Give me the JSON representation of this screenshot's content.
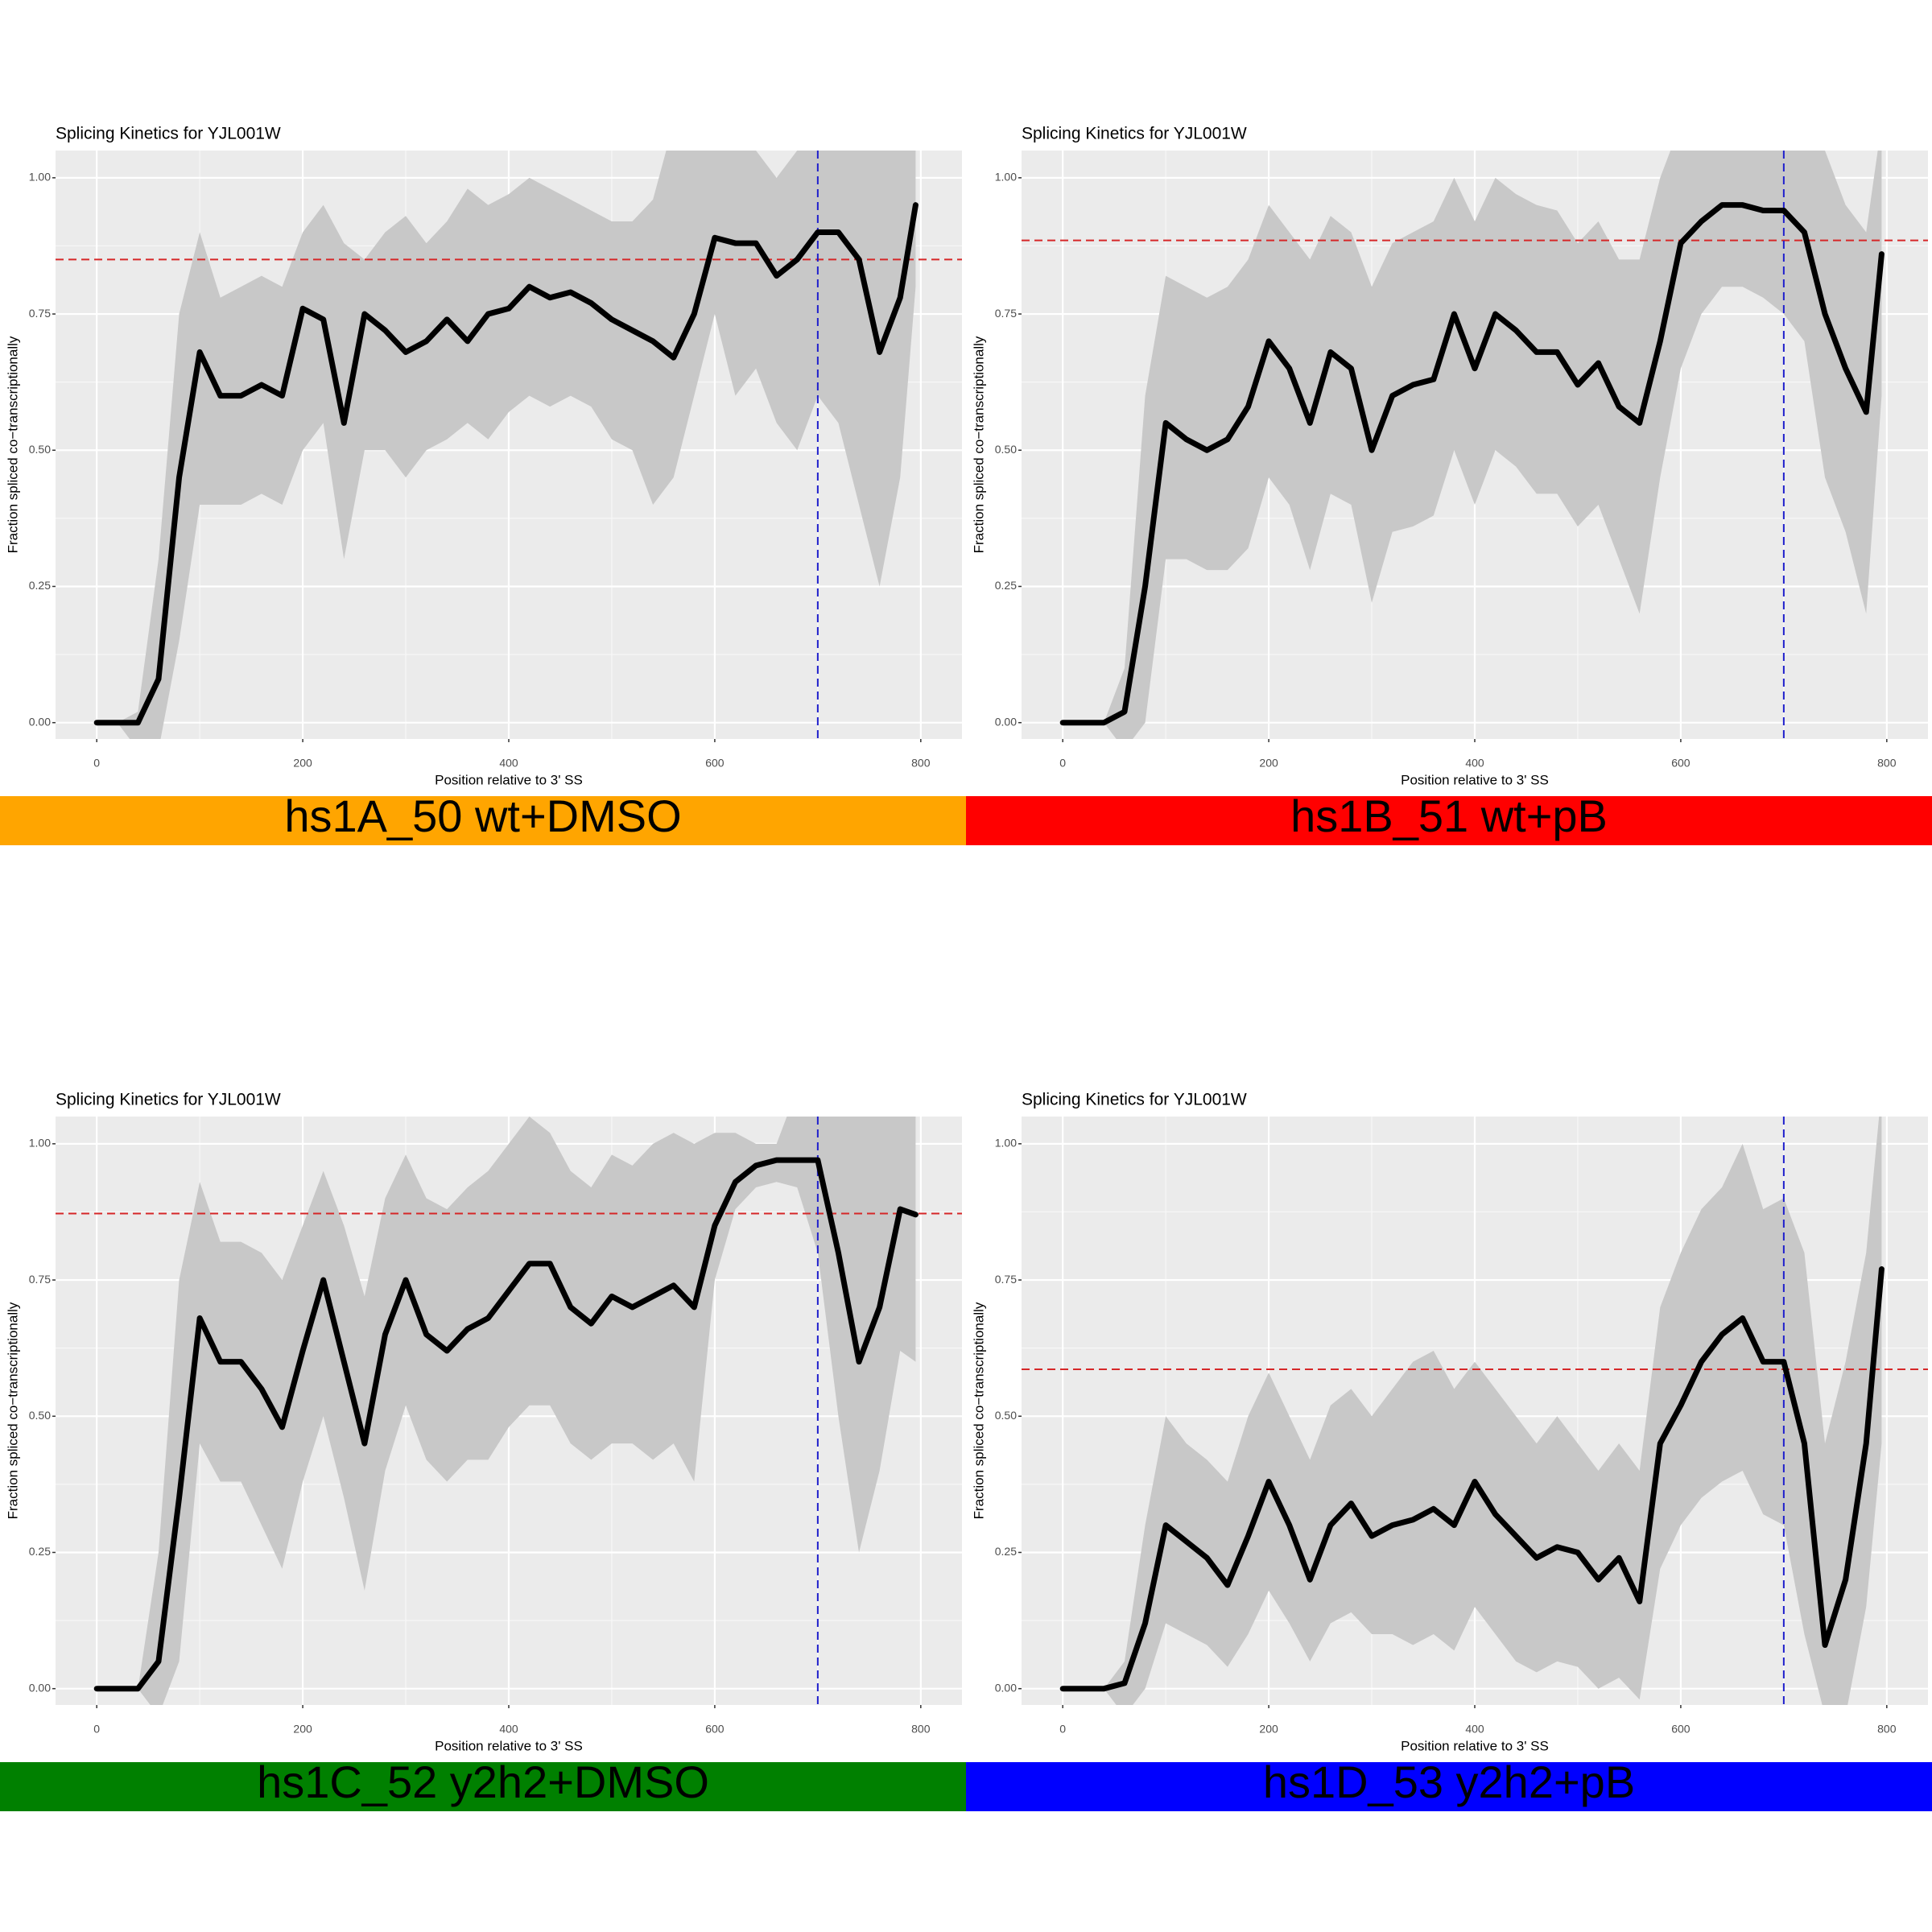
{
  "chart_data": [
    {
      "type": "line",
      "title": "Splicing Kinetics for YJL001W",
      "x_label": "Position relative to 3' SS",
      "y_label": "Fraction spliced co−transcriptionally",
      "panel_label": "hs1A_50 wt+DMSO",
      "panel_color": "#ffa500",
      "xlim": [
        -40,
        840
      ],
      "xticks": [
        0,
        200,
        400,
        600,
        800
      ],
      "ylim": [
        -0.03,
        1.05
      ],
      "yticks": [
        {
          "value": 0,
          "label": "0.00"
        },
        {
          "value": 0.25,
          "label": "0.25"
        },
        {
          "value": 0.5,
          "label": "0.50"
        },
        {
          "value": 0.75,
          "label": "0.75"
        },
        {
          "value": 1,
          "label": "1.00"
        }
      ],
      "grid": true,
      "hline": 0.85,
      "hline_color": "#d62728",
      "vline": 700,
      "vline_color": "#1f1fcc",
      "band_color": "#c8c8c8",
      "x": [
        0,
        20,
        40,
        60,
        80,
        100,
        120,
        140,
        160,
        180,
        200,
        220,
        240,
        260,
        280,
        300,
        320,
        340,
        360,
        380,
        400,
        420,
        440,
        460,
        480,
        500,
        520,
        540,
        560,
        580,
        600,
        620,
        640,
        660,
        680,
        700,
        720,
        740,
        760,
        780,
        795
      ],
      "series": [
        {
          "color": "#000000",
          "values": [
            0,
            0,
            0,
            0.08,
            0.45,
            0.68,
            0.6,
            0.6,
            0.62,
            0.6,
            0.76,
            0.74,
            0.55,
            0.75,
            0.72,
            0.68,
            0.7,
            0.74,
            0.7,
            0.75,
            0.76,
            0.8,
            0.78,
            0.79,
            0.77,
            0.74,
            0.72,
            0.7,
            0.67,
            0.75,
            0.89,
            0.88,
            0.88,
            0.82,
            0.85,
            0.9,
            0.9,
            0.85,
            0.68,
            0.78,
            0.95
          ],
          "upper": [
            0,
            0,
            0.02,
            0.3,
            0.75,
            0.9,
            0.78,
            0.8,
            0.82,
            0.8,
            0.9,
            0.95,
            0.88,
            0.85,
            0.9,
            0.93,
            0.88,
            0.92,
            0.98,
            0.95,
            0.97,
            1.0,
            0.98,
            0.96,
            0.94,
            0.92,
            0.92,
            0.96,
            1.1,
            1.1,
            1.1,
            1.1,
            1.05,
            1.0,
            1.05,
            1.1,
            1.1,
            1.1,
            1.1,
            1.1,
            1.1
          ],
          "lower": [
            0,
            0,
            -0.05,
            -0.05,
            0.15,
            0.4,
            0.4,
            0.4,
            0.42,
            0.4,
            0.5,
            0.55,
            0.3,
            0.5,
            0.5,
            0.45,
            0.5,
            0.52,
            0.55,
            0.52,
            0.57,
            0.6,
            0.58,
            0.6,
            0.58,
            0.52,
            0.5,
            0.4,
            0.45,
            0.6,
            0.75,
            0.6,
            0.65,
            0.55,
            0.5,
            0.6,
            0.55,
            0.4,
            0.25,
            0.45,
            0.8
          ]
        }
      ]
    },
    {
      "type": "line",
      "title": "Splicing Kinetics for YJL001W",
      "x_label": "Position relative to 3' SS",
      "y_label": "Fraction spliced co−transcriptionally",
      "panel_label": "hs1B_51 wt+pB",
      "panel_color": "#ff0000",
      "xlim": [
        -40,
        840
      ],
      "xticks": [
        0,
        200,
        400,
        600,
        800
      ],
      "ylim": [
        -0.03,
        1.05
      ],
      "yticks": [
        {
          "value": 0,
          "label": "0.00"
        },
        {
          "value": 0.25,
          "label": "0.25"
        },
        {
          "value": 0.5,
          "label": "0.50"
        },
        {
          "value": 0.75,
          "label": "0.75"
        },
        {
          "value": 1,
          "label": "1.00"
        }
      ],
      "grid": true,
      "hline": 0.885,
      "hline_color": "#d62728",
      "vline": 700,
      "vline_color": "#1f1fcc",
      "band_color": "#c8c8c8",
      "x": [
        0,
        20,
        40,
        60,
        80,
        100,
        120,
        140,
        160,
        180,
        200,
        220,
        240,
        260,
        280,
        300,
        320,
        340,
        360,
        380,
        400,
        420,
        440,
        460,
        480,
        500,
        520,
        540,
        560,
        580,
        600,
        620,
        640,
        660,
        680,
        700,
        720,
        740,
        760,
        780,
        795
      ],
      "series": [
        {
          "color": "#000000",
          "values": [
            0,
            0,
            0,
            0.02,
            0.25,
            0.55,
            0.52,
            0.5,
            0.52,
            0.58,
            0.7,
            0.65,
            0.55,
            0.68,
            0.65,
            0.5,
            0.6,
            0.62,
            0.63,
            0.75,
            0.65,
            0.75,
            0.72,
            0.68,
            0.68,
            0.62,
            0.66,
            0.58,
            0.55,
            0.7,
            0.88,
            0.92,
            0.95,
            0.95,
            0.94,
            0.94,
            0.9,
            0.75,
            0.65,
            0.57,
            0.86
          ],
          "upper": [
            0,
            0,
            0,
            0.1,
            0.6,
            0.82,
            0.8,
            0.78,
            0.8,
            0.85,
            0.95,
            0.9,
            0.85,
            0.93,
            0.9,
            0.8,
            0.88,
            0.9,
            0.92,
            1.0,
            0.92,
            1.0,
            0.97,
            0.95,
            0.94,
            0.88,
            0.92,
            0.85,
            0.85,
            1.0,
            1.1,
            1.1,
            1.1,
            1.1,
            1.1,
            1.1,
            1.1,
            1.05,
            0.95,
            0.9,
            1.1
          ],
          "lower": [
            0,
            0,
            0,
            -0.05,
            0.0,
            0.3,
            0.3,
            0.28,
            0.28,
            0.32,
            0.45,
            0.4,
            0.28,
            0.42,
            0.4,
            0.22,
            0.35,
            0.36,
            0.38,
            0.5,
            0.4,
            0.5,
            0.47,
            0.42,
            0.42,
            0.36,
            0.4,
            0.3,
            0.2,
            0.45,
            0.65,
            0.75,
            0.8,
            0.8,
            0.78,
            0.75,
            0.7,
            0.45,
            0.35,
            0.2,
            0.6
          ]
        }
      ]
    },
    {
      "type": "line",
      "title": "Splicing Kinetics for YJL001W",
      "x_label": "Position relative to 3' SS",
      "y_label": "Fraction spliced co−transcriptionally",
      "panel_label": "hs1C_52 y2h2+DMSO",
      "panel_color": "#008000",
      "xlim": [
        -40,
        840
      ],
      "xticks": [
        0,
        200,
        400,
        600,
        800
      ],
      "ylim": [
        -0.03,
        1.05
      ],
      "yticks": [
        {
          "value": 0,
          "label": "0.00"
        },
        {
          "value": 0.25,
          "label": "0.25"
        },
        {
          "value": 0.5,
          "label": "0.50"
        },
        {
          "value": 0.75,
          "label": "0.75"
        },
        {
          "value": 1,
          "label": "1.00"
        }
      ],
      "grid": true,
      "hline": 0.872,
      "hline_color": "#d62728",
      "vline": 700,
      "vline_color": "#1f1fcc",
      "band_color": "#c8c8c8",
      "x": [
        0,
        20,
        40,
        60,
        80,
        100,
        120,
        140,
        160,
        180,
        200,
        220,
        240,
        260,
        280,
        300,
        320,
        340,
        360,
        380,
        400,
        420,
        440,
        460,
        480,
        500,
        520,
        540,
        560,
        580,
        600,
        620,
        640,
        660,
        680,
        700,
        720,
        740,
        760,
        780,
        795
      ],
      "series": [
        {
          "color": "#000000",
          "values": [
            0,
            0,
            0,
            0.05,
            0.35,
            0.68,
            0.6,
            0.6,
            0.55,
            0.48,
            0.62,
            0.75,
            0.6,
            0.45,
            0.65,
            0.75,
            0.65,
            0.62,
            0.66,
            0.68,
            0.73,
            0.78,
            0.78,
            0.7,
            0.67,
            0.72,
            0.7,
            0.72,
            0.74,
            0.7,
            0.85,
            0.93,
            0.96,
            0.97,
            0.97,
            0.97,
            0.8,
            0.6,
            0.7,
            0.88,
            0.87
          ],
          "upper": [
            0,
            0,
            0,
            0.25,
            0.75,
            0.93,
            0.82,
            0.82,
            0.8,
            0.75,
            0.85,
            0.95,
            0.85,
            0.72,
            0.9,
            0.98,
            0.9,
            0.88,
            0.92,
            0.95,
            1.0,
            1.05,
            1.02,
            0.95,
            0.92,
            0.98,
            0.96,
            1.0,
            1.02,
            1.0,
            1.02,
            1.02,
            1.0,
            1.0,
            1.1,
            1.1,
            1.1,
            1.1,
            1.1,
            1.1,
            1.1
          ],
          "lower": [
            0,
            0,
            0,
            -0.05,
            0.05,
            0.45,
            0.38,
            0.38,
            0.3,
            0.22,
            0.38,
            0.5,
            0.35,
            0.18,
            0.4,
            0.52,
            0.42,
            0.38,
            0.42,
            0.42,
            0.48,
            0.52,
            0.52,
            0.45,
            0.42,
            0.45,
            0.45,
            0.42,
            0.45,
            0.38,
            0.75,
            0.88,
            0.92,
            0.93,
            0.92,
            0.8,
            0.5,
            0.25,
            0.4,
            0.62,
            0.6
          ]
        }
      ]
    },
    {
      "type": "line",
      "title": "Splicing Kinetics for YJL001W",
      "x_label": "Position relative to 3' SS",
      "y_label": "Fraction spliced co−transcriptionally",
      "panel_label": "hs1D_53 y2h2+pB",
      "panel_color": "#0000ff",
      "xlim": [
        -40,
        840
      ],
      "xticks": [
        0,
        200,
        400,
        600,
        800
      ],
      "ylim": [
        -0.03,
        1.05
      ],
      "yticks": [
        {
          "value": 0,
          "label": "0.00"
        },
        {
          "value": 0.25,
          "label": "0.25"
        },
        {
          "value": 0.5,
          "label": "0.50"
        },
        {
          "value": 0.75,
          "label": "0.75"
        },
        {
          "value": 1,
          "label": "1.00"
        }
      ],
      "grid": true,
      "hline": 0.586,
      "hline_color": "#d62728",
      "vline": 700,
      "vline_color": "#1f1fcc",
      "band_color": "#c8c8c8",
      "x": [
        0,
        20,
        40,
        60,
        80,
        100,
        120,
        140,
        160,
        180,
        200,
        220,
        240,
        260,
        280,
        300,
        320,
        340,
        360,
        380,
        400,
        420,
        440,
        460,
        480,
        500,
        520,
        540,
        560,
        580,
        600,
        620,
        640,
        660,
        680,
        700,
        720,
        740,
        760,
        780,
        795
      ],
      "series": [
        {
          "color": "#000000",
          "values": [
            0,
            0,
            0,
            0.01,
            0.12,
            0.3,
            0.27,
            0.24,
            0.19,
            0.28,
            0.38,
            0.3,
            0.2,
            0.3,
            0.34,
            0.28,
            0.3,
            0.31,
            0.33,
            0.3,
            0.38,
            0.32,
            0.28,
            0.24,
            0.26,
            0.25,
            0.2,
            0.24,
            0.16,
            0.45,
            0.52,
            0.6,
            0.65,
            0.68,
            0.6,
            0.6,
            0.45,
            0.08,
            0.2,
            0.45,
            0.77
          ],
          "upper": [
            0,
            0,
            0,
            0.05,
            0.3,
            0.5,
            0.45,
            0.42,
            0.38,
            0.5,
            0.58,
            0.5,
            0.42,
            0.52,
            0.55,
            0.5,
            0.55,
            0.6,
            0.62,
            0.55,
            0.6,
            0.55,
            0.5,
            0.45,
            0.5,
            0.45,
            0.4,
            0.45,
            0.4,
            0.7,
            0.8,
            0.88,
            0.92,
            1.0,
            0.88,
            0.9,
            0.8,
            0.45,
            0.6,
            0.8,
            1.1
          ],
          "lower": [
            0,
            0,
            0,
            -0.05,
            0.0,
            0.12,
            0.1,
            0.08,
            0.04,
            0.1,
            0.18,
            0.12,
            0.05,
            0.12,
            0.14,
            0.1,
            0.1,
            0.08,
            0.1,
            0.07,
            0.15,
            0.1,
            0.05,
            0.03,
            0.05,
            0.04,
            0.0,
            0.02,
            -0.02,
            0.22,
            0.3,
            0.35,
            0.38,
            0.4,
            0.32,
            0.3,
            0.1,
            -0.05,
            -0.05,
            0.15,
            0.45
          ]
        }
      ]
    }
  ]
}
